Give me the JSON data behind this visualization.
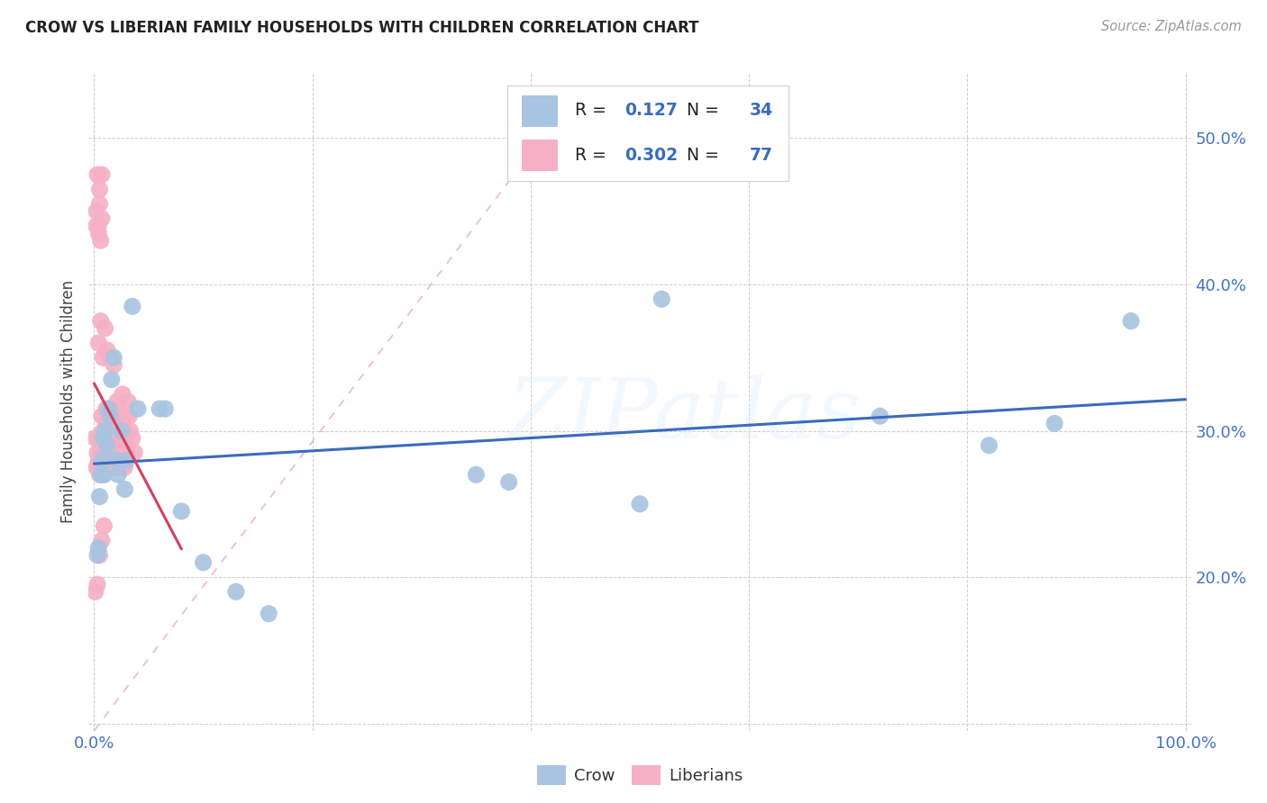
{
  "title": "CROW VS LIBERIAN FAMILY HOUSEHOLDS WITH CHILDREN CORRELATION CHART",
  "source": "Source: ZipAtlas.com",
  "ylabel": "Family Households with Children",
  "xlim": [
    -0.005,
    1.005
  ],
  "ylim": [
    0.095,
    0.545
  ],
  "crow_color": "#a8c4e0",
  "liberian_color": "#f5b0c5",
  "crow_line_color": "#3a6bbf",
  "liberian_line_color": "#d44060",
  "diagonal_color": "#e8a0b8",
  "crow_R": "0.127",
  "crow_N": "34",
  "liberian_R": "0.302",
  "liberian_N": "77",
  "label_black_color": "#222222",
  "label_blue_color": "#3a6bbf",
  "label_N_color": "#d44060",
  "watermark_text": "ZIPatlas",
  "tick_color": "#4472c4",
  "crow_x": [
    0.003,
    0.004,
    0.005,
    0.006,
    0.007,
    0.008,
    0.009,
    0.01,
    0.012,
    0.013,
    0.015,
    0.016,
    0.018,
    0.02,
    0.022,
    0.025,
    0.028,
    0.03,
    0.035,
    0.04,
    0.06,
    0.065,
    0.08,
    0.1,
    0.13,
    0.16,
    0.35,
    0.38,
    0.5,
    0.52,
    0.72,
    0.82,
    0.88,
    0.95
  ],
  "crow_y": [
    0.215,
    0.22,
    0.255,
    0.27,
    0.28,
    0.295,
    0.27,
    0.3,
    0.29,
    0.315,
    0.31,
    0.335,
    0.35,
    0.28,
    0.27,
    0.3,
    0.26,
    0.28,
    0.385,
    0.315,
    0.315,
    0.315,
    0.245,
    0.21,
    0.19,
    0.175,
    0.27,
    0.265,
    0.25,
    0.39,
    0.31,
    0.29,
    0.305,
    0.375
  ],
  "liberian_x": [
    0.001,
    0.002,
    0.003,
    0.003,
    0.004,
    0.004,
    0.005,
    0.005,
    0.005,
    0.006,
    0.006,
    0.007,
    0.007,
    0.007,
    0.008,
    0.008,
    0.009,
    0.009,
    0.01,
    0.01,
    0.011,
    0.011,
    0.012,
    0.012,
    0.013,
    0.013,
    0.014,
    0.014,
    0.015,
    0.015,
    0.016,
    0.016,
    0.017,
    0.017,
    0.018,
    0.018,
    0.019,
    0.02,
    0.02,
    0.021,
    0.022,
    0.022,
    0.023,
    0.024,
    0.025,
    0.025,
    0.026,
    0.027,
    0.028,
    0.028,
    0.029,
    0.03,
    0.031,
    0.032,
    0.033,
    0.035,
    0.037,
    0.004,
    0.006,
    0.008,
    0.01,
    0.012,
    0.015,
    0.018,
    0.003,
    0.005,
    0.007,
    0.009,
    0.002,
    0.004,
    0.006,
    0.003,
    0.005,
    0.007,
    0.002,
    0.004,
    0.001
  ],
  "liberian_y": [
    0.295,
    0.275,
    0.285,
    0.275,
    0.295,
    0.28,
    0.28,
    0.27,
    0.465,
    0.29,
    0.27,
    0.31,
    0.285,
    0.475,
    0.3,
    0.275,
    0.28,
    0.27,
    0.295,
    0.275,
    0.315,
    0.305,
    0.3,
    0.275,
    0.3,
    0.275,
    0.295,
    0.28,
    0.295,
    0.275,
    0.305,
    0.285,
    0.315,
    0.295,
    0.3,
    0.275,
    0.295,
    0.305,
    0.275,
    0.32,
    0.31,
    0.285,
    0.3,
    0.295,
    0.29,
    0.275,
    0.325,
    0.31,
    0.3,
    0.275,
    0.295,
    0.285,
    0.32,
    0.31,
    0.3,
    0.295,
    0.285,
    0.36,
    0.375,
    0.35,
    0.37,
    0.355,
    0.35,
    0.345,
    0.195,
    0.215,
    0.225,
    0.235,
    0.45,
    0.44,
    0.43,
    0.475,
    0.455,
    0.445,
    0.44,
    0.435,
    0.19
  ]
}
